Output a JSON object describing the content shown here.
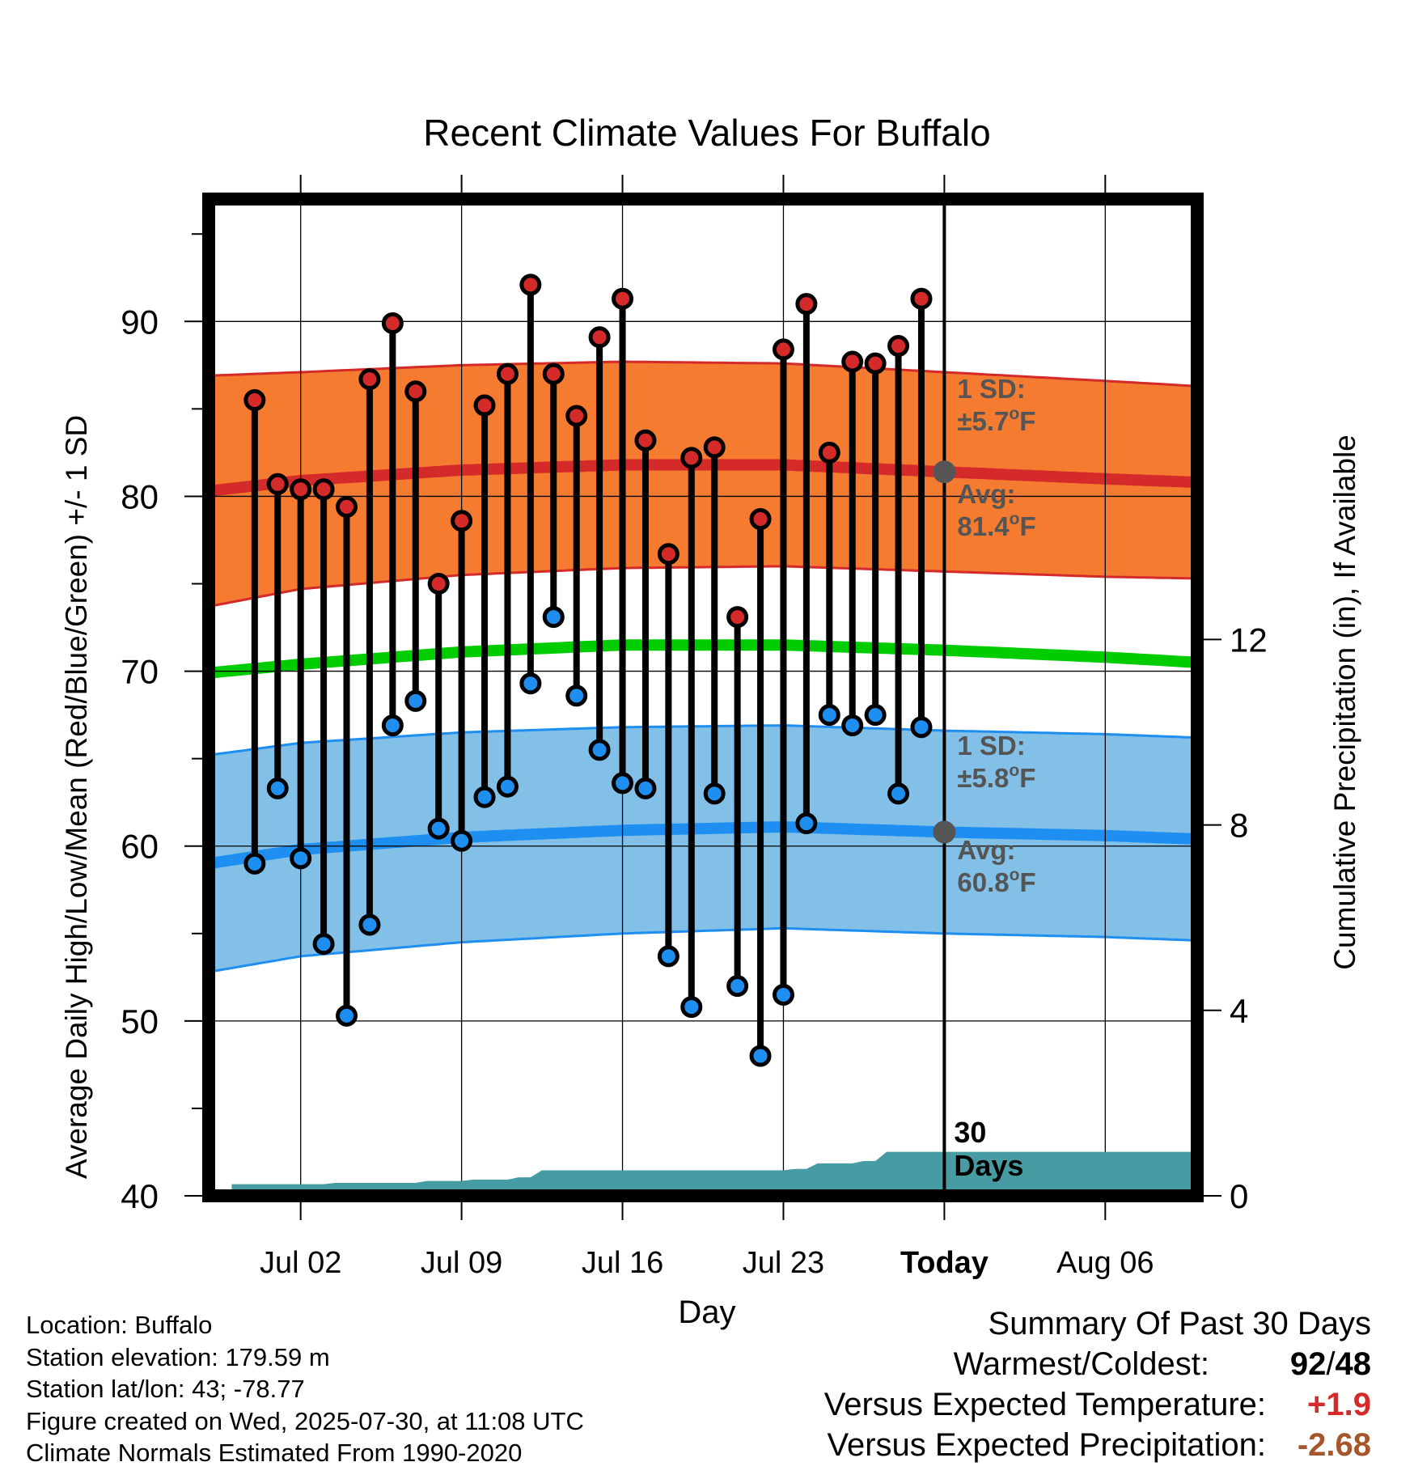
{
  "chart_data": {
    "type": "line",
    "title": "Recent Climate Values For Buffalo",
    "xlabel": "Day",
    "ylabel": "Average Daily High/Low/Mean (Red/Blue/Green) +/- 1 SD",
    "y2label": "Cumulative Precipitation (in), If Available",
    "ylim": [
      40,
      97
    ],
    "y2lim": [
      0,
      21.5
    ],
    "yticks": [
      40,
      50,
      60,
      70,
      80,
      90
    ],
    "y2ticks": [
      0,
      4,
      8,
      12
    ],
    "xlim": [
      "2025-06-28",
      "2025-08-10"
    ],
    "xticks": [
      {
        "date": "2025-07-02",
        "label": "Jul 02"
      },
      {
        "date": "2025-07-09",
        "label": "Jul 09"
      },
      {
        "date": "2025-07-16",
        "label": "Jul 16"
      },
      {
        "date": "2025-07-23",
        "label": "Jul 23"
      },
      {
        "date": "2025-07-30",
        "label": "Today"
      },
      {
        "date": "2025-08-06",
        "label": "Aug 06"
      }
    ],
    "grid": true,
    "today": "2025-07-30",
    "today_label": "30 Days",
    "observed": [
      {
        "date": "2025-06-30",
        "high": 85.5,
        "low": 59.0
      },
      {
        "date": "2025-07-01",
        "high": 80.7,
        "low": 63.3
      },
      {
        "date": "2025-07-02",
        "high": 80.4,
        "low": 59.3
      },
      {
        "date": "2025-07-03",
        "high": 80.4,
        "low": 54.4
      },
      {
        "date": "2025-07-04",
        "high": 79.4,
        "low": 50.3
      },
      {
        "date": "2025-07-05",
        "high": 86.7,
        "low": 55.5
      },
      {
        "date": "2025-07-06",
        "high": 89.9,
        "low": 66.9
      },
      {
        "date": "2025-07-07",
        "high": 86.0,
        "low": 68.3
      },
      {
        "date": "2025-07-08",
        "high": 75.0,
        "low": 61.0
      },
      {
        "date": "2025-07-09",
        "high": 78.6,
        "low": 60.3
      },
      {
        "date": "2025-07-10",
        "high": 85.2,
        "low": 62.8
      },
      {
        "date": "2025-07-11",
        "high": 87.0,
        "low": 63.4
      },
      {
        "date": "2025-07-12",
        "high": 92.1,
        "low": 69.3
      },
      {
        "date": "2025-07-13",
        "high": 87.0,
        "low": 73.1
      },
      {
        "date": "2025-07-14",
        "high": 84.6,
        "low": 68.6
      },
      {
        "date": "2025-07-15",
        "high": 89.1,
        "low": 65.5
      },
      {
        "date": "2025-07-16",
        "high": 91.3,
        "low": 63.6
      },
      {
        "date": "2025-07-17",
        "high": 83.2,
        "low": 63.3
      },
      {
        "date": "2025-07-18",
        "high": 76.7,
        "low": 53.7
      },
      {
        "date": "2025-07-19",
        "high": 82.2,
        "low": 50.8
      },
      {
        "date": "2025-07-20",
        "high": 82.8,
        "low": 63.0
      },
      {
        "date": "2025-07-21",
        "high": 73.1,
        "low": 52.0
      },
      {
        "date": "2025-07-22",
        "high": 78.7,
        "low": 48.0
      },
      {
        "date": "2025-07-23",
        "high": 88.4,
        "low": 51.5
      },
      {
        "date": "2025-07-24",
        "high": 91.0,
        "low": 61.3
      },
      {
        "date": "2025-07-25",
        "high": 82.5,
        "low": 67.5
      },
      {
        "date": "2025-07-26",
        "high": 87.7,
        "low": 66.9
      },
      {
        "date": "2025-07-27",
        "high": 87.6,
        "low": 67.5
      },
      {
        "date": "2025-07-28",
        "high": 88.6,
        "low": 63.0
      },
      {
        "date": "2025-07-29",
        "high": 91.3,
        "low": 66.8
      }
    ],
    "normals": [
      {
        "date": "2025-06-28",
        "high": 80.3,
        "low": 59.0,
        "mean": 69.9,
        "high_sd": 6.6,
        "low_sd": 6.2
      },
      {
        "date": "2025-07-02",
        "high": 80.9,
        "low": 59.8,
        "mean": 70.4,
        "high_sd": 6.2,
        "low_sd": 6.1
      },
      {
        "date": "2025-07-09",
        "high": 81.5,
        "low": 60.5,
        "mean": 71.1,
        "high_sd": 6.0,
        "low_sd": 6.0
      },
      {
        "date": "2025-07-16",
        "high": 81.8,
        "low": 60.9,
        "mean": 71.5,
        "high_sd": 5.9,
        "low_sd": 5.9
      },
      {
        "date": "2025-07-23",
        "high": 81.8,
        "low": 61.1,
        "mean": 71.5,
        "high_sd": 5.8,
        "low_sd": 5.8
      },
      {
        "date": "2025-07-30",
        "high": 81.4,
        "low": 60.8,
        "mean": 71.2,
        "high_sd": 5.7,
        "low_sd": 5.8
      },
      {
        "date": "2025-08-06",
        "high": 81.0,
        "low": 60.6,
        "mean": 70.8,
        "high_sd": 5.6,
        "low_sd": 5.8
      },
      {
        "date": "2025-08-10",
        "high": 80.8,
        "low": 60.4,
        "mean": 70.5,
        "high_sd": 5.5,
        "low_sd": 5.8
      }
    ],
    "precip_cumulative": [
      {
        "date": "2025-06-29",
        "value": 0.25
      },
      {
        "date": "2025-07-03",
        "value": 0.28
      },
      {
        "date": "2025-07-07",
        "value": 0.32
      },
      {
        "date": "2025-07-09",
        "value": 0.35
      },
      {
        "date": "2025-07-11",
        "value": 0.4
      },
      {
        "date": "2025-07-12",
        "value": 0.55
      },
      {
        "date": "2025-07-23",
        "value": 0.58
      },
      {
        "date": "2025-07-24",
        "value": 0.7
      },
      {
        "date": "2025-07-26",
        "value": 0.75
      },
      {
        "date": "2025-07-27",
        "value": 0.95
      },
      {
        "date": "2025-08-10",
        "value": 0.95
      }
    ],
    "annotations": {
      "high_sd_label": "1 SD:",
      "high_sd_value": "±5.7",
      "high_avg_label": "Avg:",
      "high_avg_value": "81.4",
      "low_sd_label": "1 SD:",
      "low_sd_value": "±5.8",
      "low_avg_label": "Avg:",
      "low_avg_value": "60.8",
      "unit_degree": "o",
      "unit_letter": "F",
      "today_label_line1": "30",
      "today_label_line2": "Days"
    },
    "colors": {
      "high_band": "#f47b30",
      "high_line": "#d42a2a",
      "low_band": "#82c0e8",
      "low_line": "#1e8ff0",
      "mean_line": "#00cc00",
      "high_dot": "#d42a2a",
      "low_dot": "#1e8ff0",
      "precip": "#479ca3",
      "annotation_text": "#555555",
      "avg_marker": "#555555"
    }
  },
  "info": {
    "location": "Location: Buffalo",
    "elevation": "Station elevation: 179.59 m",
    "latlon": "Station lat/lon: 43; -78.77",
    "created": "Figure created on Wed, 2025-07-30, at 11:08 UTC",
    "normals": "Climate Normals Estimated From 1990-2020"
  },
  "summary": {
    "heading": "Summary Of Past 30 Days",
    "warmest_coldest_label": "Warmest/Coldest:",
    "warmest": "92",
    "slash": "/",
    "coldest": "48",
    "temp_label": "Versus Expected Temperature:",
    "temp_value": "+1.9",
    "precip_label": "Versus Expected Precipitation:",
    "precip_value": "-2.68",
    "temp_color": "#d42a2a",
    "precip_color": "#a5562a"
  }
}
